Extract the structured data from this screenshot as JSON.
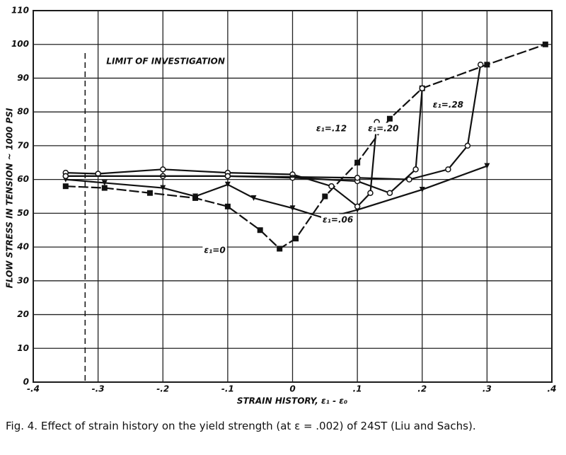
{
  "chart_data": {
    "type": "line",
    "ylabel": "FLOW STRESS IN TENSION ~ 1000 PSI",
    "xlabel": "STRAIN HISTORY, ε₁ - ε₀",
    "caption": "Fig. 4.  Effect of strain history on the yield strength (at ε = .002) of 24ST (Liu and Sachs).",
    "annotations": [
      {
        "text": "LIMIT OF INVESTIGATION",
        "x": -0.32
      }
    ],
    "xlim": [
      -0.4,
      0.4
    ],
    "xticks": [
      {
        "value": -0.4,
        "label": "-.4"
      },
      {
        "value": -0.3,
        "label": "-.3"
      },
      {
        "value": -0.2,
        "label": "-.2"
      },
      {
        "value": -0.1,
        "label": "-.1"
      },
      0,
      {
        "value": 0.1,
        "label": ".1"
      },
      {
        "value": 0.2,
        "label": ".2"
      },
      {
        "value": 0.3,
        "label": ".3"
      },
      {
        "value": 0.4,
        "label": ".4"
      }
    ],
    "ylim": [
      0,
      110
    ],
    "yticks": [
      0,
      10,
      20,
      30,
      40,
      50,
      60,
      70,
      80,
      90,
      100,
      110
    ],
    "grid": true,
    "series": [
      {
        "name": "ε₁=0",
        "color": "#111111",
        "marker": "square",
        "x": [
          -0.35,
          -0.29,
          -0.22,
          -0.15,
          -0.1,
          -0.05,
          -0.02,
          0.005,
          0.05,
          0.1,
          0.15,
          0.2,
          0.3,
          0.39
        ],
        "values": [
          58,
          57.5,
          56,
          54.5,
          52,
          45,
          39.5,
          42.5,
          55,
          65,
          78,
          87,
          94,
          100
        ]
      },
      {
        "name": "ε₁=.06",
        "color": "#111111",
        "marker": "triangle",
        "x": [
          -0.35,
          -0.29,
          -0.2,
          -0.15,
          -0.1,
          -0.06,
          0,
          0.05,
          0.1,
          0.2,
          0.3
        ],
        "values": [
          60,
          59,
          57.5,
          55,
          58.5,
          54.5,
          51.5,
          48.5,
          51,
          57,
          64
        ]
      },
      {
        "name": "ε₁=.12",
        "color": "#111111",
        "marker": "circle",
        "x": [
          -0.35,
          -0.3,
          -0.2,
          -0.1,
          0,
          0.06,
          0.1,
          0.12,
          0.13
        ],
        "values": [
          62,
          61.7,
          63,
          62,
          61.5,
          58,
          52,
          56,
          77
        ]
      },
      {
        "name": "ε₁=.20",
        "color": "#111111",
        "marker": "circle",
        "x": [
          -0.35,
          -0.2,
          -0.1,
          0,
          0.1,
          0.15,
          0.19,
          0.2
        ],
        "values": [
          61,
          61,
          61,
          60.5,
          59.5,
          56,
          63,
          87
        ]
      },
      {
        "name": "ε₁=.28",
        "color": "#111111",
        "marker": "circle",
        "x": [
          -0.35,
          -0.1,
          0.1,
          0.18,
          0.24,
          0.27,
          0.29
        ],
        "values": [
          61,
          61,
          60.5,
          60,
          63,
          70,
          94
        ]
      }
    ]
  }
}
